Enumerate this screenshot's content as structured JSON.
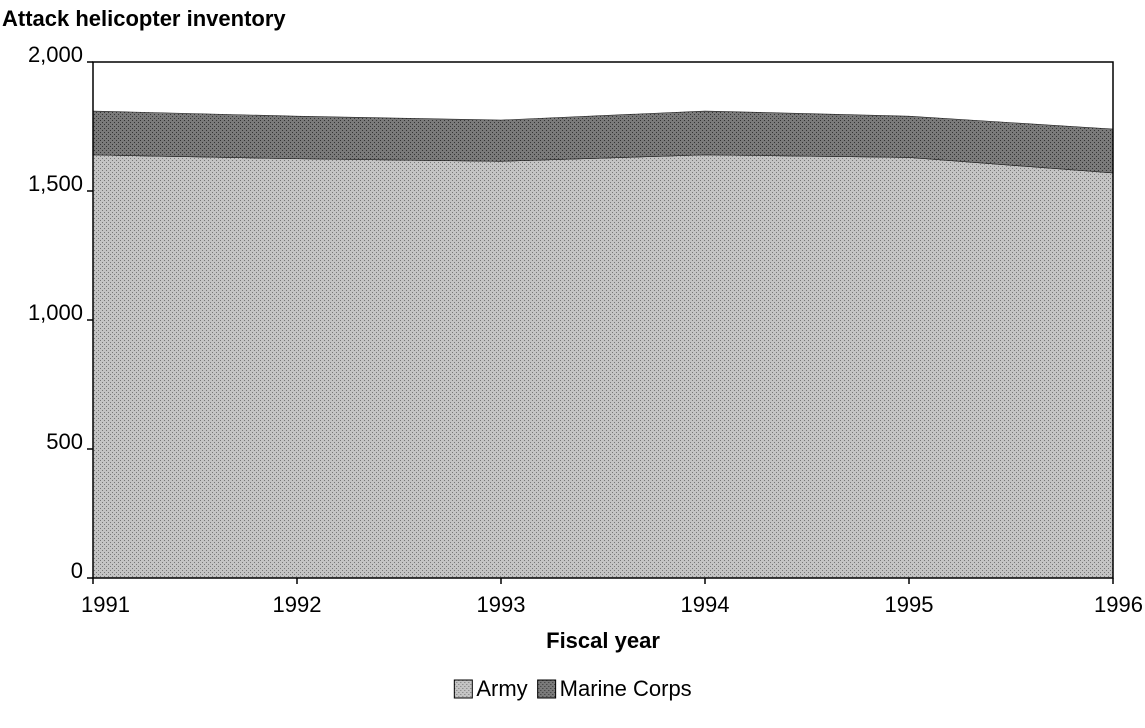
{
  "chart_data": {
    "type": "area",
    "stacked": true,
    "title": "Attack helicopter inventory",
    "xlabel": "Fiscal year",
    "x": [
      1991,
      1992,
      1993,
      1994,
      1995,
      1996
    ],
    "series": [
      {
        "name": "Army",
        "color": "#c4c4c4",
        "values": [
          1640,
          1625,
          1615,
          1640,
          1630,
          1570
        ]
      },
      {
        "name": "Marine Corps",
        "color": "#7a7a7a",
        "values": [
          170,
          165,
          160,
          170,
          160,
          170
        ]
      }
    ],
    "xlim": [
      1991,
      1996
    ],
    "xticks": [
      1991,
      1992,
      1993,
      1994,
      1995,
      1996
    ],
    "ylim": [
      0,
      2000
    ],
    "yticks": [
      0,
      500,
      {
        "value": 1000,
        "label": "1,000"
      },
      {
        "value": 1500,
        "label": "1,500"
      },
      {
        "value": 2000,
        "label": "2,000"
      }
    ],
    "legend": "bottom"
  }
}
